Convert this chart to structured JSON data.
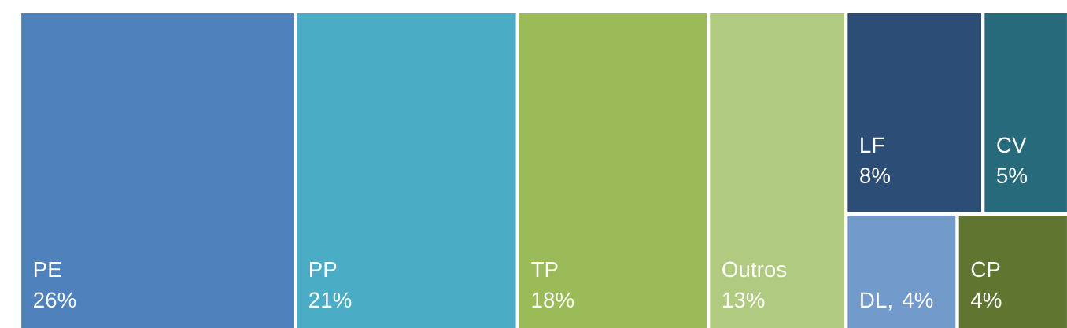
{
  "chart_data": {
    "type": "other",
    "categories": [
      "PE",
      "PP",
      "TP",
      "Outros",
      "LF",
      "CV",
      "DL",
      "CP"
    ],
    "values": [
      26,
      21,
      18,
      13,
      8,
      5,
      4,
      4
    ],
    "value_labels": [
      "26%",
      "21%",
      "18%",
      "13%",
      "8%",
      "5%",
      "4%",
      "4%"
    ],
    "annotations": [
      ","
    ],
    "colors": [
      "#4f81bd",
      "#4bacc6",
      "#9bbb59",
      "#b0cb7f",
      "#2c4d75",
      "#276a7c",
      "#729aca",
      "#5f7530"
    ]
  }
}
